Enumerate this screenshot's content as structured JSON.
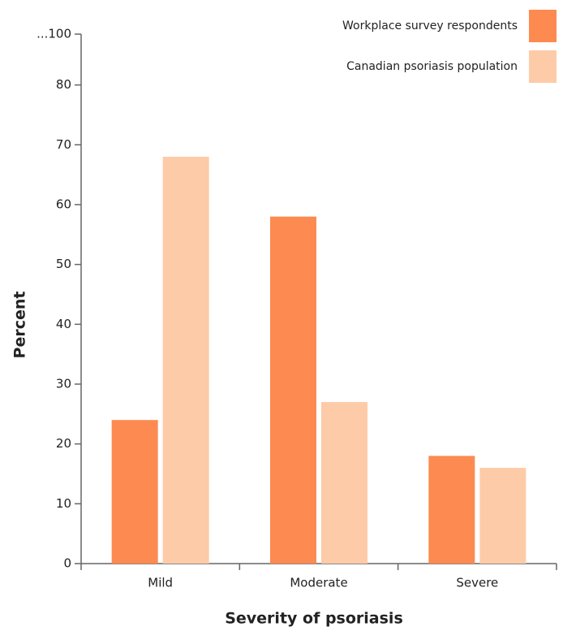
{
  "chart_data": {
    "type": "bar",
    "x_label": "Severity of psoriasis",
    "y_label": "Percent",
    "categories": [
      "Mild",
      "Moderate",
      "Severe"
    ],
    "series": [
      {
        "name": "Workplace survey respondents",
        "color": "#fd8a50",
        "values": [
          24,
          58,
          18
        ]
      },
      {
        "name": "Canadian psoriasis population",
        "color": "#fdcba8",
        "values": [
          68,
          27,
          16
        ]
      }
    ],
    "ylim": [
      0,
      100
    ],
    "yticks": [
      0,
      10,
      20,
      30,
      40,
      50,
      60,
      70,
      80,
      {
        "value": 100,
        "label": "...100"
      }
    ],
    "y_axis_break": true,
    "grid": false,
    "legend": "top-right"
  }
}
